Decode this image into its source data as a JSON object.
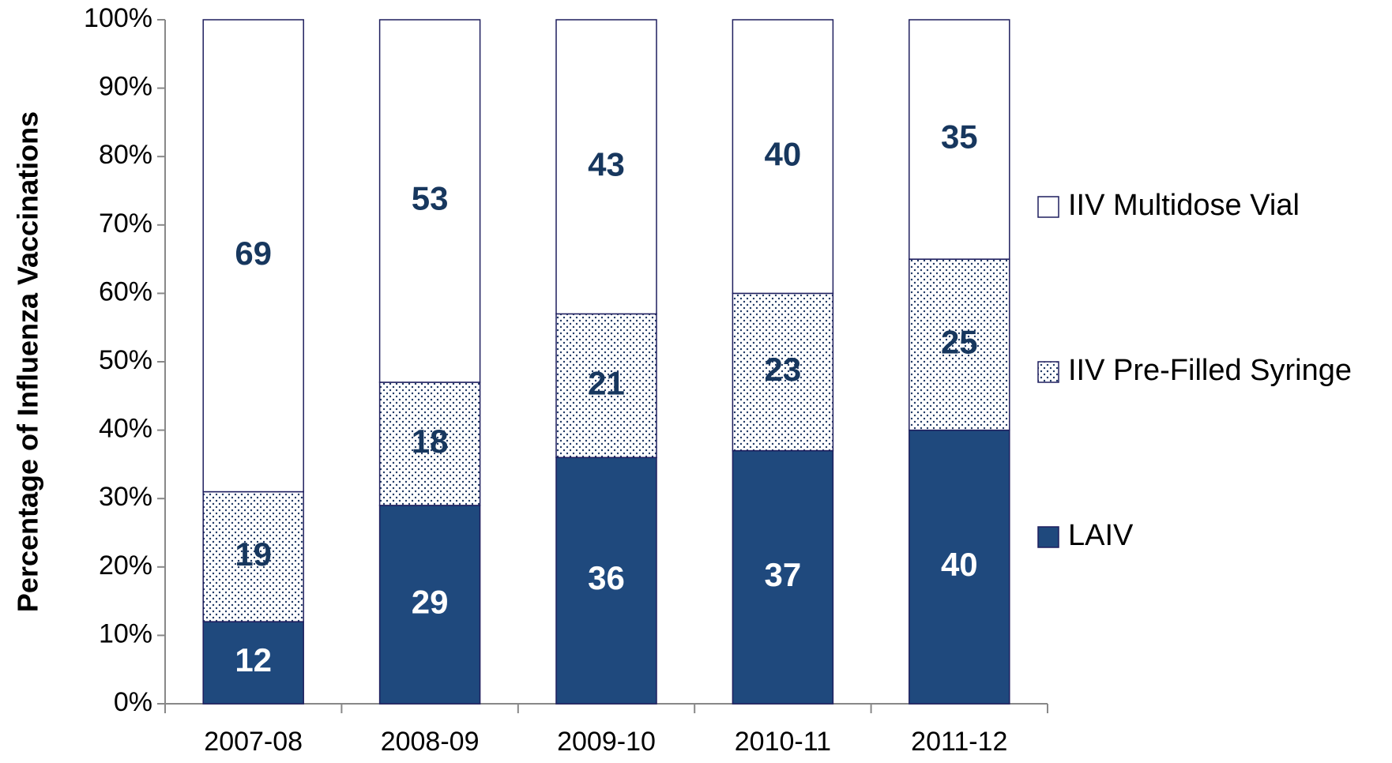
{
  "chart_data": {
    "type": "stacked_bar",
    "y_label": "Percentage of Influenza Vaccinations",
    "categories": [
      "2007-08",
      "2008-09",
      "2009-10",
      "2010-11",
      "2011-12"
    ],
    "series": [
      {
        "name": "LAIV",
        "color": "#1f497d",
        "values": [
          12,
          29,
          36,
          37,
          40
        ]
      },
      {
        "name": "IIV Pre-Filled Syringe",
        "color": "#1f3864",
        "pattern": "dots",
        "values": [
          19,
          18,
          21,
          23,
          25
        ]
      },
      {
        "name": "IIV Multidose Vial",
        "color": "#ffffff",
        "values": [
          69,
          53,
          43,
          40,
          35
        ]
      }
    ],
    "ylim": [
      0,
      100
    ],
    "yticks": [
      {
        "value": 0,
        "label": "0%"
      },
      {
        "value": 10,
        "label": "10%"
      },
      {
        "value": 20,
        "label": "20%"
      },
      {
        "value": 30,
        "label": "30%"
      },
      {
        "value": 40,
        "label": "40%"
      },
      {
        "value": 50,
        "label": "50%"
      },
      {
        "value": 60,
        "label": "60%"
      },
      {
        "value": 70,
        "label": "70%"
      },
      {
        "value": 80,
        "label": "80%"
      },
      {
        "value": 90,
        "label": "90%"
      },
      {
        "value": 100,
        "label": "100%"
      }
    ],
    "legend": "right"
  }
}
